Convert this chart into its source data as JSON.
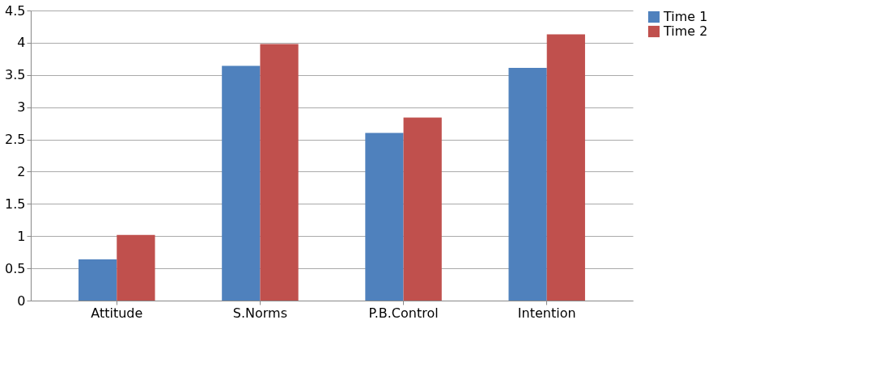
{
  "chart_data": {
    "type": "bar",
    "categories": [
      "Attitude",
      "S.Norms",
      "P.B.Control",
      "Intention"
    ],
    "series": [
      {
        "name": "Time 1",
        "color": "#4f81bd",
        "values": [
          0.64,
          3.64,
          2.6,
          3.61
        ]
      },
      {
        "name": "Time 2",
        "color": "#c0504d",
        "values": [
          1.02,
          3.98,
          2.84,
          4.13
        ]
      }
    ],
    "ylim": [
      0,
      4.5
    ],
    "yticks": [
      0,
      0.5,
      1,
      1.5,
      2,
      2.5,
      3,
      3.5,
      4,
      4.5
    ],
    "grid": "y",
    "legend": "right"
  }
}
